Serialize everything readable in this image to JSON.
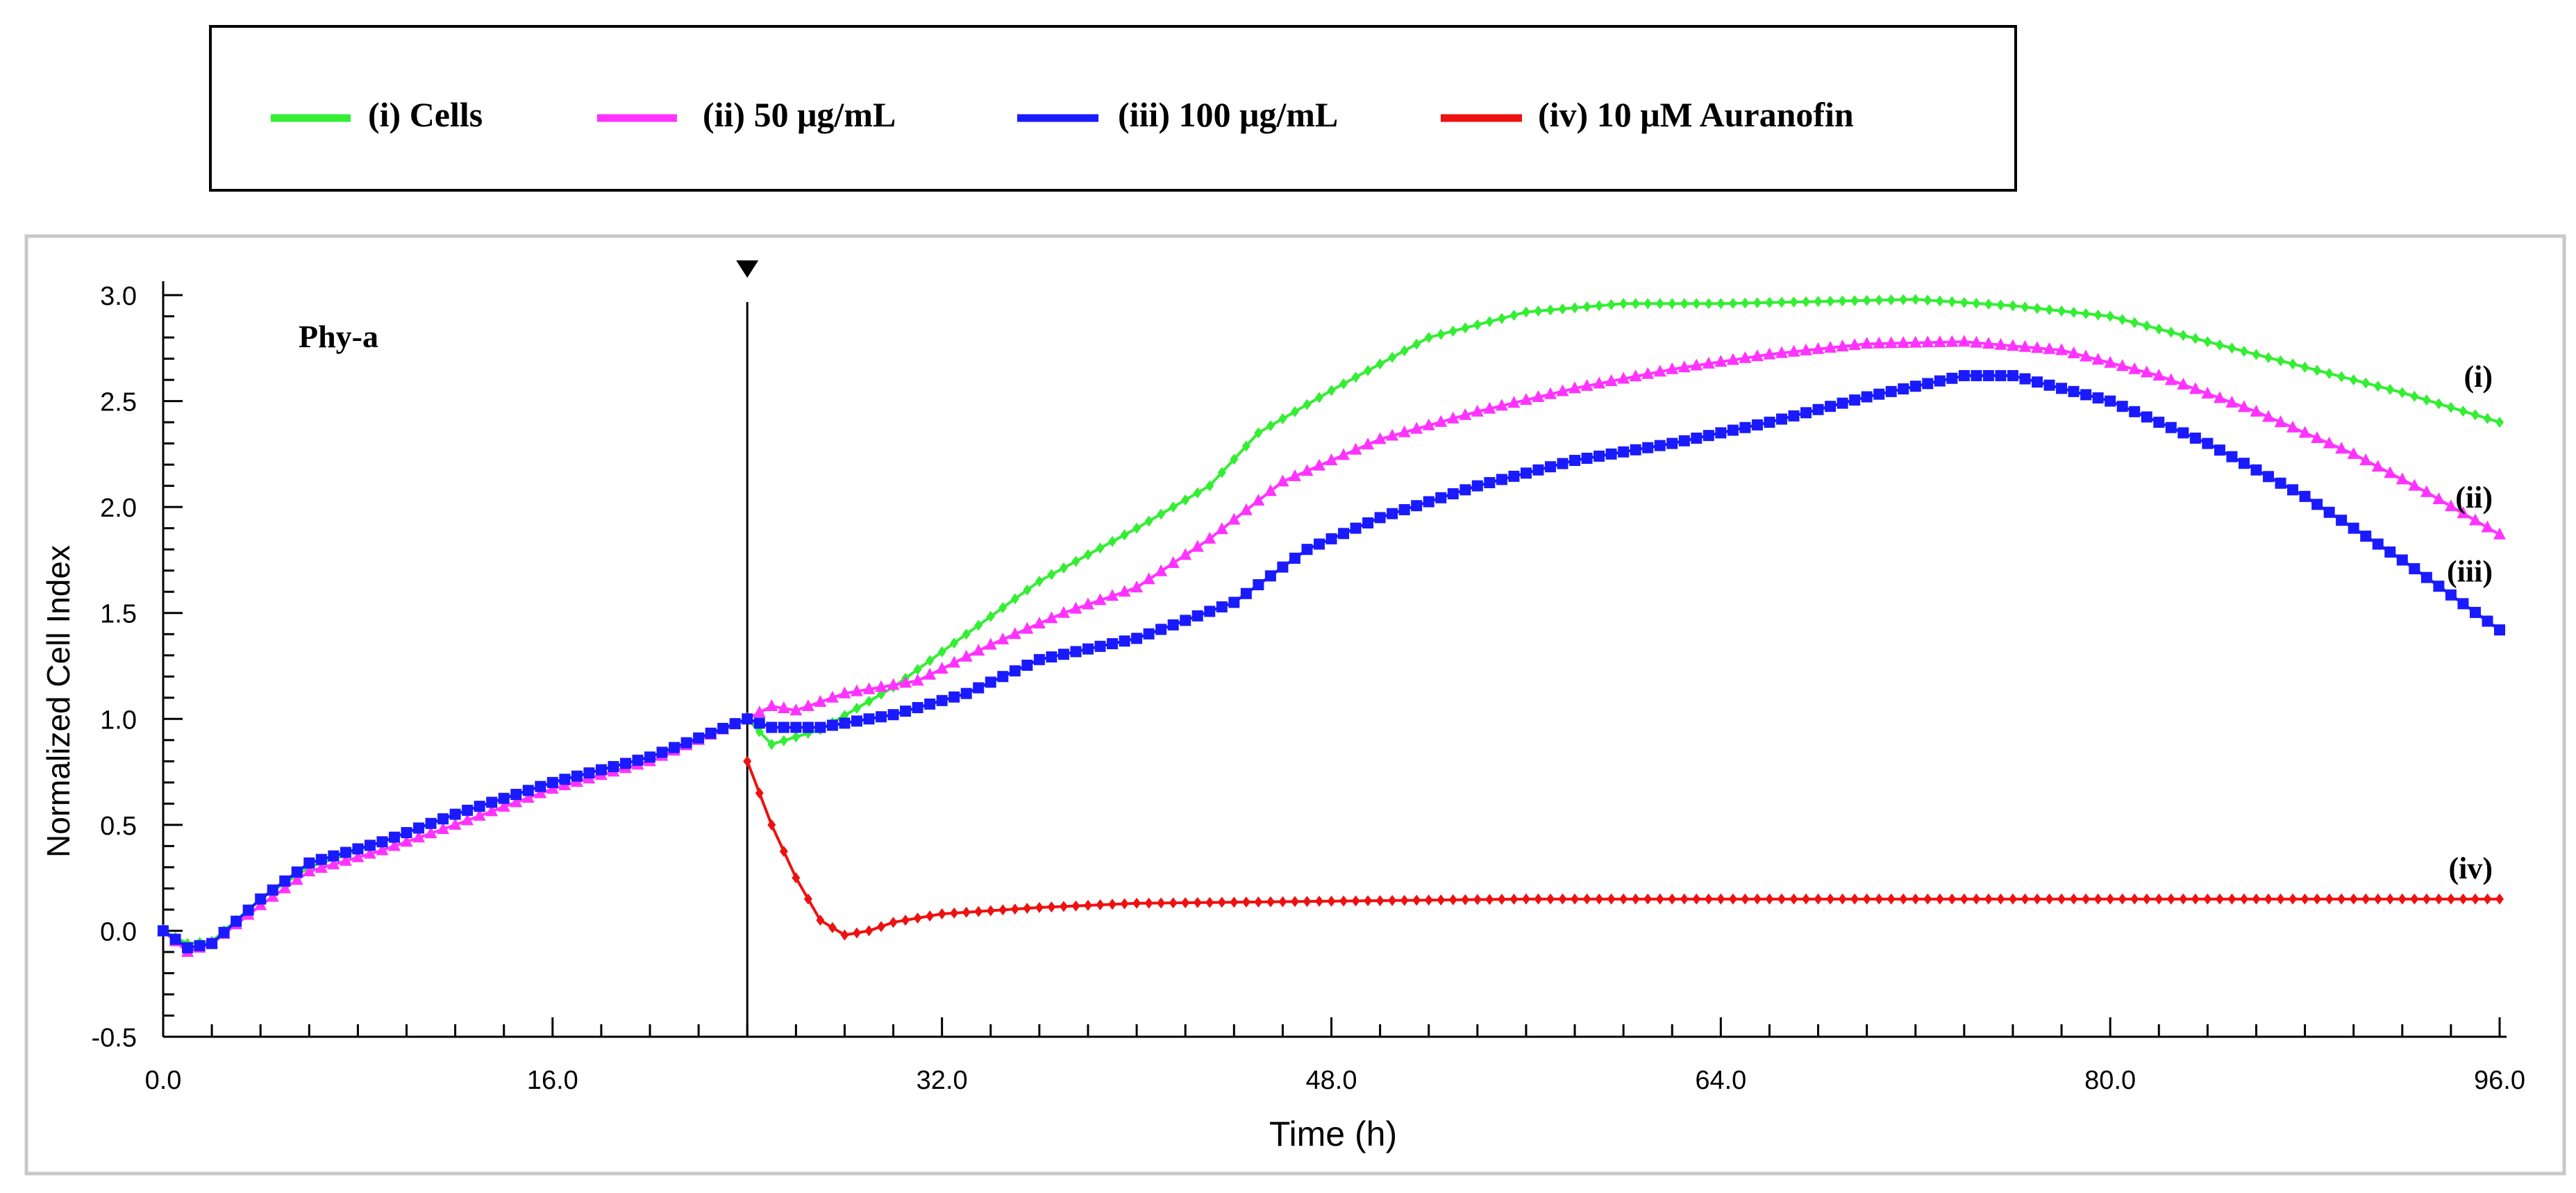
{
  "colors": {
    "cells": "#33ee33",
    "low": "#ff33ff",
    "high": "#1a1aff",
    "auranofin": "#ee1111",
    "axis": "#000000",
    "frame": "#c8c8c8"
  },
  "legend": {
    "items": [
      {
        "label": "(i) Cells"
      },
      {
        "label": "(ii) 50 μg/mL"
      },
      {
        "label": "(iii) 100 μg/mL"
      },
      {
        "label": "(iv) 10 μM Auranofin"
      }
    ]
  },
  "chart_data": {
    "type": "line",
    "annotation": "Phy-a",
    "xlabel": "Time (h)",
    "ylabel": "Normalized Cell Index",
    "xlim": [
      0,
      96
    ],
    "ylim": [
      -0.5,
      3.0
    ],
    "xticks": [
      "0.0",
      "16.0",
      "32.0",
      "48.0",
      "64.0",
      "80.0",
      "96.0"
    ],
    "yticks": [
      "-0.5",
      "0.0",
      "0.5",
      "1.0",
      "1.5",
      "2.0",
      "2.5",
      "3.0"
    ],
    "treatment_time": 24,
    "series": [
      {
        "name": "(i) Cells",
        "end_label": "(i)",
        "marker": "diamond",
        "points": [
          [
            0,
            0
          ],
          [
            1,
            -0.06
          ],
          [
            2,
            -0.05
          ],
          [
            4,
            0.15
          ],
          [
            6,
            0.3
          ],
          [
            9,
            0.42
          ],
          [
            12,
            0.55
          ],
          [
            16,
            0.7
          ],
          [
            20,
            0.82
          ],
          [
            24,
            1.0
          ],
          [
            25,
            0.88
          ],
          [
            27,
            0.95
          ],
          [
            30,
            1.15
          ],
          [
            33,
            1.4
          ],
          [
            36,
            1.65
          ],
          [
            40,
            1.9
          ],
          [
            43,
            2.1
          ],
          [
            45,
            2.35
          ],
          [
            48,
            2.55
          ],
          [
            52,
            2.8
          ],
          [
            56,
            2.92
          ],
          [
            60,
            2.96
          ],
          [
            64,
            2.96
          ],
          [
            68,
            2.97
          ],
          [
            72,
            2.98
          ],
          [
            76,
            2.95
          ],
          [
            80,
            2.9
          ],
          [
            84,
            2.78
          ],
          [
            88,
            2.66
          ],
          [
            92,
            2.54
          ],
          [
            96,
            2.4
          ]
        ]
      },
      {
        "name": "(ii) 50 μg/mL",
        "end_label": "(ii)",
        "marker": "triangle",
        "points": [
          [
            0,
            0
          ],
          [
            1,
            -0.1
          ],
          [
            2,
            -0.06
          ],
          [
            4,
            0.12
          ],
          [
            6,
            0.28
          ],
          [
            9,
            0.38
          ],
          [
            12,
            0.5
          ],
          [
            16,
            0.67
          ],
          [
            20,
            0.8
          ],
          [
            24,
            1.0
          ],
          [
            25,
            1.06
          ],
          [
            26,
            1.04
          ],
          [
            28,
            1.12
          ],
          [
            31,
            1.18
          ],
          [
            34,
            1.35
          ],
          [
            37,
            1.5
          ],
          [
            40,
            1.62
          ],
          [
            43,
            1.85
          ],
          [
            46,
            2.12
          ],
          [
            50,
            2.32
          ],
          [
            54,
            2.45
          ],
          [
            58,
            2.56
          ],
          [
            62,
            2.65
          ],
          [
            66,
            2.72
          ],
          [
            70,
            2.77
          ],
          [
            74,
            2.78
          ],
          [
            78,
            2.74
          ],
          [
            82,
            2.62
          ],
          [
            86,
            2.45
          ],
          [
            90,
            2.25
          ],
          [
            93,
            2.07
          ],
          [
            96,
            1.87
          ]
        ]
      },
      {
        "name": "(iii) 100 μg/mL",
        "end_label": "(iii)",
        "marker": "square",
        "points": [
          [
            0,
            0
          ],
          [
            1,
            -0.08
          ],
          [
            2,
            -0.06
          ],
          [
            4,
            0.15
          ],
          [
            6,
            0.32
          ],
          [
            9,
            0.42
          ],
          [
            12,
            0.55
          ],
          [
            16,
            0.7
          ],
          [
            20,
            0.82
          ],
          [
            24,
            1.0
          ],
          [
            25,
            0.96
          ],
          [
            27,
            0.96
          ],
          [
            30,
            1.02
          ],
          [
            33,
            1.12
          ],
          [
            36,
            1.28
          ],
          [
            40,
            1.38
          ],
          [
            44,
            1.55
          ],
          [
            47,
            1.8
          ],
          [
            50,
            1.95
          ],
          [
            54,
            2.1
          ],
          [
            58,
            2.22
          ],
          [
            62,
            2.3
          ],
          [
            66,
            2.4
          ],
          [
            70,
            2.52
          ],
          [
            74,
            2.62
          ],
          [
            76,
            2.62
          ],
          [
            80,
            2.5
          ],
          [
            84,
            2.3
          ],
          [
            88,
            2.05
          ],
          [
            92,
            1.75
          ],
          [
            96,
            1.42
          ]
        ]
      },
      {
        "name": "(iv) 10 μM Auranofin",
        "end_label": "(iv)",
        "marker": "diamond",
        "points": [
          [
            24,
            0.8
          ],
          [
            25,
            0.5
          ],
          [
            26,
            0.25
          ],
          [
            27,
            0.05
          ],
          [
            28,
            -0.02
          ],
          [
            29,
            0.0
          ],
          [
            30,
            0.04
          ],
          [
            32,
            0.08
          ],
          [
            36,
            0.11
          ],
          [
            40,
            0.13
          ],
          [
            48,
            0.14
          ],
          [
            56,
            0.15
          ],
          [
            64,
            0.15
          ],
          [
            72,
            0.15
          ],
          [
            80,
            0.15
          ],
          [
            88,
            0.15
          ],
          [
            96,
            0.15
          ]
        ]
      }
    ]
  }
}
